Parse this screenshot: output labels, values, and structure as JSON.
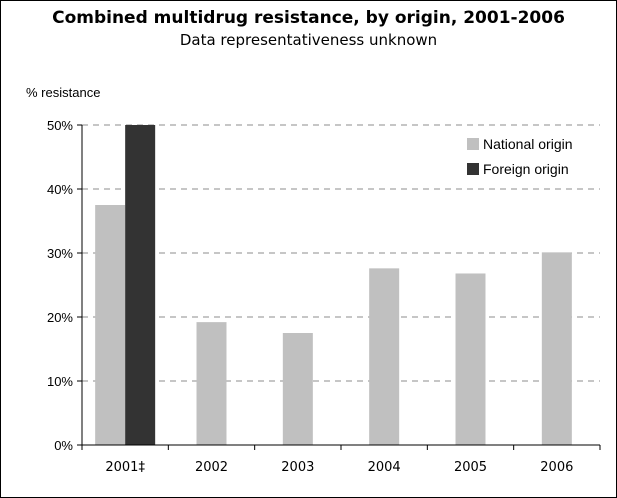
{
  "chart_data": {
    "type": "bar",
    "title": "Combined multidrug resistance, by origin, 2001-2006",
    "subtitle": "Data representativeness unknown",
    "ylabel": "% resistance",
    "xlabel": "",
    "categories": [
      "2001‡",
      "2002",
      "2003",
      "2004",
      "2005",
      "2006"
    ],
    "series": [
      {
        "name": "National origin",
        "color": "#c0c0c0",
        "values": [
          37.5,
          19.2,
          17.5,
          27.6,
          26.8,
          30.1
        ]
      },
      {
        "name": "Foreign origin",
        "color": "#333333",
        "values": [
          50.0,
          null,
          null,
          null,
          null,
          null
        ]
      }
    ],
    "ylim": [
      0,
      50
    ],
    "yticks": [
      0,
      10,
      20,
      30,
      40,
      50
    ],
    "ytick_labels": [
      "0%",
      "10%",
      "20%",
      "30%",
      "40%",
      "50%"
    ],
    "grid": true,
    "legend_position": "top-right"
  }
}
